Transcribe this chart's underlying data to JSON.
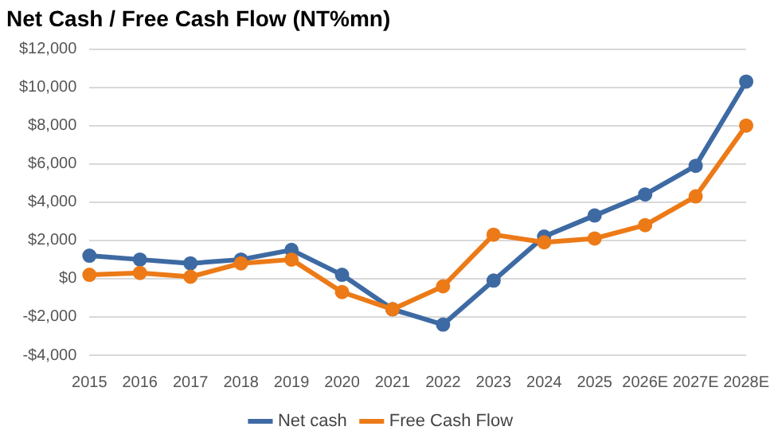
{
  "chart_data": {
    "type": "line",
    "title": "Net Cash / Free Cash Flow (NT%mn)",
    "categories": [
      "2015",
      "2016",
      "2017",
      "2018",
      "2019",
      "2020",
      "2021",
      "2022",
      "2023",
      "2024",
      "2025",
      "2026E",
      "2027E",
      "2028E"
    ],
    "series": [
      {
        "name": "Net cash",
        "color": "#3e6aa3",
        "values": [
          1200,
          1000,
          800,
          1000,
          1500,
          200,
          -1600,
          -2400,
          -100,
          2200,
          3300,
          4400,
          5900,
          10300
        ]
      },
      {
        "name": "Free Cash Flow",
        "color": "#ec7a17",
        "values": [
          200,
          300,
          100,
          800,
          1000,
          -700,
          -1600,
          -400,
          2300,
          1900,
          2100,
          2800,
          4300,
          8000
        ]
      }
    ],
    "ylim": [
      -4000,
      12000
    ],
    "yticks": [
      {
        "value": -4000,
        "label": "-$4,000"
      },
      {
        "value": -2000,
        "label": "-$2,000"
      },
      {
        "value": 0,
        "label": "$0"
      },
      {
        "value": 2000,
        "label": "$2,000"
      },
      {
        "value": 4000,
        "label": "$4,000"
      },
      {
        "value": 6000,
        "label": "$6,000"
      },
      {
        "value": 8000,
        "label": "$8,000"
      },
      {
        "value": 10000,
        "label": "$10,000"
      },
      {
        "value": 12000,
        "label": "$12,000"
      }
    ],
    "grid": "y",
    "legend": "bottom",
    "marker": "circle",
    "line_style": "solid"
  }
}
